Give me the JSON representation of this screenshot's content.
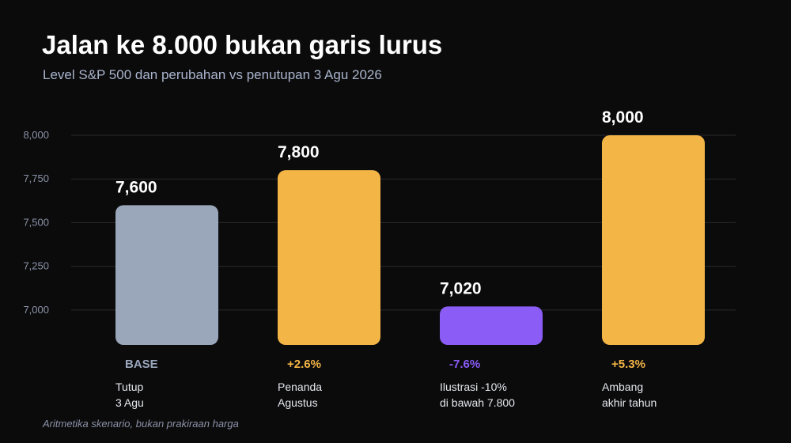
{
  "title": "Jalan ke 8.000 bukan garis lurus",
  "subtitle": "Level S&P 500 dan perubahan vs penutupan 3 Agu 2026",
  "footnote": "Aritmetika skenario, bukan prakiraan harga",
  "colors": {
    "base": "#9aa6ba",
    "positive": "#f4b547",
    "negative": "#8b5cf6",
    "grid": "#2b2b2e",
    "background": "#0b0b0c"
  },
  "chart_data": {
    "type": "bar",
    "categories": [
      [
        "Tutup",
        "3 Agu"
      ],
      [
        "Penanda",
        "Agustus"
      ],
      [
        "Ilustrasi -10%",
        "di bawah 7.800"
      ],
      [
        "Ambang",
        "akhir tahun"
      ]
    ],
    "values": [
      7600,
      7800,
      7020,
      8000
    ],
    "value_labels": [
      "7,600",
      "7,800",
      "7,020",
      "8,000"
    ],
    "change_labels": [
      "BASE",
      "+2.6%",
      "-7.6%",
      "+5.3%"
    ],
    "bar_colors": [
      "#9aa6ba",
      "#f4b547",
      "#8b5cf6",
      "#f4b547"
    ],
    "change_colors": [
      "#9aa6ba",
      "#f4b547",
      "#8b5cf6",
      "#f4b547"
    ],
    "yticks": [
      7000,
      7250,
      7500,
      7750,
      8000
    ],
    "ytick_labels": [
      "7,000",
      "7,250",
      "7,500",
      "7,750",
      "8,000"
    ],
    "ylim": [
      6800,
      8000
    ],
    "grid": true,
    "legend": "none"
  }
}
